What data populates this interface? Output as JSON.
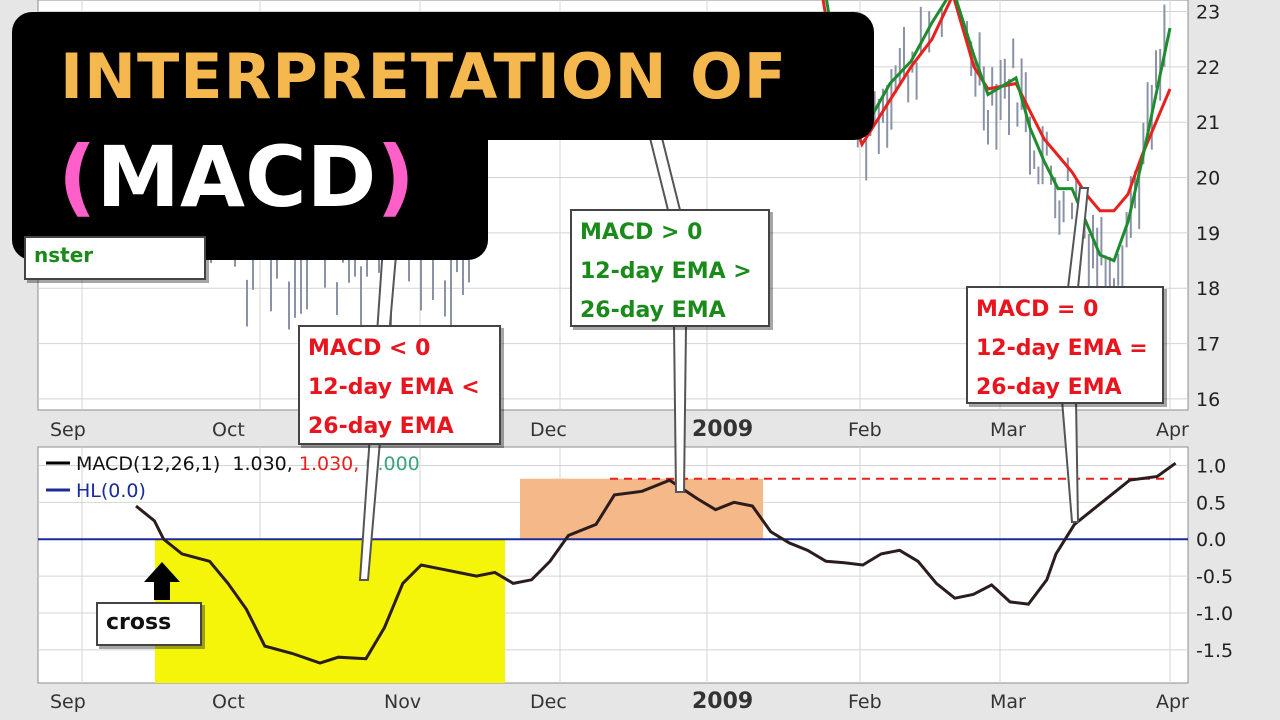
{
  "title": {
    "line1": "INTERPRETATION OF",
    "paren_open": "(",
    "acronym": "MACD",
    "paren_close": ")"
  },
  "colors": {
    "price_bars": "#8a93a6",
    "ema_fast": "#1e8c2e",
    "ema_slow": "#e8201e",
    "macd_line": "#2b1d1d",
    "hl_line": "#1b2b9a",
    "negative_zone": "#f5f50a",
    "positive_zone": "#f5b888",
    "label_red": "#e8141e",
    "label_green": "#1a8a1a"
  },
  "annotations": {
    "negative": [
      "MACD < 0",
      "12-day EMA <",
      "26-day EMA"
    ],
    "positive": [
      "MACD > 0",
      "12-day EMA >",
      "26-day EMA"
    ],
    "zero": [
      "MACD = 0",
      "12-day EMA =",
      "26-day EMA"
    ],
    "cross": "cross",
    "partial_box": "nster"
  },
  "chart_data": [
    {
      "type": "line",
      "panel": "price",
      "x_labels": [
        "Sep",
        "Oct",
        "Nov",
        "Dec",
        "2009",
        "Feb",
        "Mar",
        "Apr"
      ],
      "yticks": [
        16,
        17,
        18,
        19,
        20,
        21,
        22,
        23
      ],
      "ylim": [
        15.8,
        23.1
      ],
      "series": [
        {
          "color_key": "ema_fast",
          "points": [
            [
              0.47,
              26.2
            ],
            [
              0.52,
              22.4
            ],
            [
              0.56,
              20.8
            ],
            [
              0.6,
              21.7
            ],
            [
              0.63,
              22.1
            ],
            [
              0.66,
              22.8
            ],
            [
              0.69,
              23.4
            ],
            [
              0.72,
              22.2
            ],
            [
              0.74,
              21.5
            ],
            [
              0.78,
              21.8
            ],
            [
              0.8,
              20.9
            ],
            [
              0.82,
              20.3
            ],
            [
              0.84,
              19.8
            ],
            [
              0.86,
              19.8
            ],
            [
              0.88,
              19.2
            ],
            [
              0.9,
              18.6
            ],
            [
              0.92,
              18.5
            ],
            [
              0.94,
              19.2
            ],
            [
              0.96,
              20.3
            ],
            [
              0.98,
              21.5
            ],
            [
              1.0,
              22.7
            ]
          ]
        },
        {
          "color_key": "ema_slow",
          "points": [
            [
              0.47,
              25.9
            ],
            [
              0.52,
              22.0
            ],
            [
              0.56,
              20.6
            ],
            [
              0.6,
              21.4
            ],
            [
              0.63,
              22.0
            ],
            [
              0.66,
              22.5
            ],
            [
              0.69,
              23.3
            ],
            [
              0.72,
              22.0
            ],
            [
              0.74,
              21.6
            ],
            [
              0.78,
              21.7
            ],
            [
              0.8,
              21.2
            ],
            [
              0.82,
              20.7
            ],
            [
              0.84,
              20.4
            ],
            [
              0.86,
              20.1
            ],
            [
              0.88,
              19.7
            ],
            [
              0.9,
              19.4
            ],
            [
              0.92,
              19.4
            ],
            [
              0.94,
              19.7
            ],
            [
              0.96,
              20.4
            ],
            [
              0.98,
              21.0
            ],
            [
              1.0,
              21.6
            ]
          ]
        }
      ]
    },
    {
      "type": "line",
      "panel": "macd",
      "title": "MACD(12,26,1)",
      "title_values": [
        "1.030",
        "1.030",
        "0.000"
      ],
      "legend": [
        "MACD(12,26,1)",
        "HL(0.0)"
      ],
      "x_labels": [
        "Sep",
        "Oct",
        "Nov",
        "Dec",
        "2009",
        "Feb",
        "Mar",
        "Apr"
      ],
      "yticks": [
        1.0,
        0.5,
        0.0,
        -0.5,
        -1.0,
        -1.5
      ],
      "ylim": [
        -1.95,
        1.25
      ],
      "hl": 0.0,
      "reference_level": 0.82,
      "series": [
        {
          "name": "MACD(12,26,1)",
          "points": [
            [
              0.0,
              0.45
            ],
            [
              0.02,
              0.25
            ],
            [
              0.03,
              0.0
            ],
            [
              0.05,
              -0.2
            ],
            [
              0.08,
              -0.3
            ],
            [
              0.1,
              -0.6
            ],
            [
              0.12,
              -0.95
            ],
            [
              0.14,
              -1.45
            ],
            [
              0.17,
              -1.55
            ],
            [
              0.2,
              -1.68
            ],
            [
              0.22,
              -1.6
            ],
            [
              0.25,
              -1.62
            ],
            [
              0.27,
              -1.2
            ],
            [
              0.29,
              -0.6
            ],
            [
              0.31,
              -0.35
            ],
            [
              0.33,
              -0.4
            ],
            [
              0.35,
              -0.45
            ],
            [
              0.37,
              -0.5
            ],
            [
              0.39,
              -0.45
            ],
            [
              0.41,
              -0.6
            ],
            [
              0.43,
              -0.55
            ],
            [
              0.45,
              -0.3
            ],
            [
              0.47,
              0.05
            ],
            [
              0.5,
              0.2
            ],
            [
              0.52,
              0.6
            ],
            [
              0.55,
              0.65
            ],
            [
              0.58,
              0.8
            ],
            [
              0.61,
              0.55
            ],
            [
              0.63,
              0.4
            ],
            [
              0.65,
              0.5
            ],
            [
              0.67,
              0.45
            ],
            [
              0.69,
              0.1
            ],
            [
              0.71,
              -0.05
            ],
            [
              0.73,
              -0.15
            ],
            [
              0.75,
              -0.3
            ],
            [
              0.77,
              -0.32
            ],
            [
              0.79,
              -0.35
            ],
            [
              0.81,
              -0.2
            ],
            [
              0.83,
              -0.15
            ],
            [
              0.85,
              -0.3
            ],
            [
              0.87,
              -0.6
            ],
            [
              0.89,
              -0.8
            ],
            [
              0.91,
              -0.75
            ],
            [
              0.93,
              -0.62
            ],
            [
              0.95,
              -0.85
            ],
            [
              0.97,
              -0.88
            ],
            [
              0.99,
              -0.55
            ],
            [
              1.0,
              -0.2
            ],
            [
              1.02,
              0.2
            ],
            [
              1.05,
              0.5
            ],
            [
              1.08,
              0.8
            ],
            [
              1.11,
              0.85
            ],
            [
              1.13,
              1.03
            ]
          ]
        },
        {
          "name": "HL(0.0)",
          "points": [
            [
              0.0,
              0.0
            ],
            [
              1.13,
              0.0
            ]
          ]
        }
      ],
      "zones": [
        {
          "kind": "negative",
          "ymin": -1.95,
          "ymax": 0.0
        },
        {
          "kind": "positive",
          "ymin": 0.0,
          "ymax": 0.82
        }
      ]
    }
  ]
}
